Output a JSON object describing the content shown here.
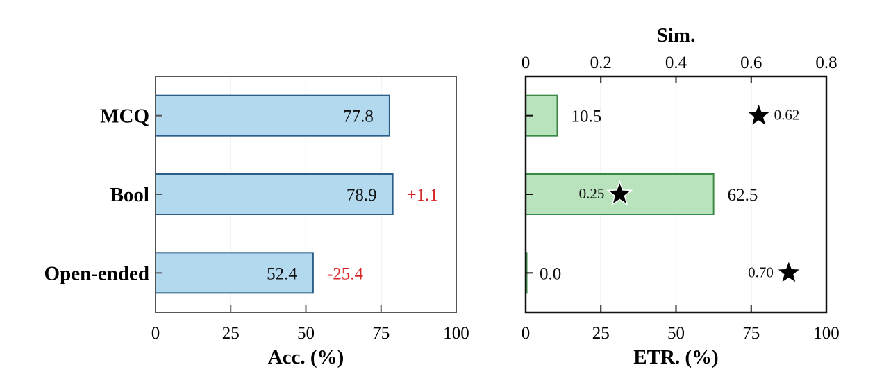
{
  "chart_data": [
    {
      "type": "bar",
      "orientation": "horizontal",
      "categories": [
        "MCQ",
        "Bool",
        "Open-ended"
      ],
      "values": [
        77.8,
        78.9,
        52.4
      ],
      "value_labels": [
        "77.8",
        "78.9",
        "52.4"
      ],
      "deltas": [
        "",
        "+1.1",
        "-25.4"
      ],
      "xlabel": "Acc. (%)",
      "xlim": [
        0,
        100
      ],
      "xticks": [
        "0",
        "25",
        "50",
        "75",
        "100"
      ],
      "grid": "vertical",
      "colors": {
        "bar_fill": "#b3d9ef",
        "bar_edge": "#2b5f8a",
        "delta": "#d62728"
      }
    },
    {
      "type": "bar",
      "orientation": "horizontal",
      "categories": [
        "MCQ",
        "Bool",
        "Open-ended"
      ],
      "values": [
        10.5,
        62.5,
        0.0
      ],
      "value_labels": [
        "10.5",
        "62.5",
        "0.0"
      ],
      "xlabel": "ETR. (%)",
      "xlim": [
        0,
        100
      ],
      "xticks": [
        "0",
        "25",
        "50",
        "75",
        "100"
      ],
      "secondary_axis": {
        "label": "Sim.",
        "lim": [
          0,
          0.8
        ],
        "ticks": [
          "0",
          "0.2",
          "0.4",
          "0.6",
          "0.8"
        ],
        "markers": "star",
        "values": [
          0.62,
          0.25,
          0.7
        ],
        "value_labels": [
          "0.62",
          "0.25",
          "0.70"
        ]
      },
      "grid": "vertical",
      "colors": {
        "bar_fill": "#b9e3bd",
        "bar_edge": "#3a8a45",
        "star": "#000000"
      }
    }
  ]
}
